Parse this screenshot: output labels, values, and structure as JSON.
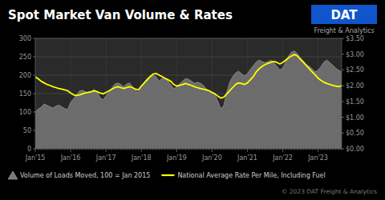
{
  "chart_data": {
    "type": "line",
    "title": "Spot Market Van Volume & Rates",
    "annotations": [
      "DAT",
      "Freight & Analytics",
      "© 2023 DAT Freight & Analytics"
    ],
    "categories": [
      "Jan'15",
      null,
      null,
      null,
      null,
      null,
      null,
      null,
      null,
      null,
      null,
      null,
      "Jan'16",
      null,
      null,
      null,
      null,
      null,
      null,
      null,
      null,
      null,
      null,
      null,
      "Jan'17",
      null,
      null,
      null,
      null,
      null,
      null,
      null,
      null,
      null,
      null,
      null,
      "Jan'18",
      null,
      null,
      null,
      null,
      null,
      null,
      null,
      null,
      null,
      null,
      null,
      "Jan'19",
      null,
      null,
      null,
      null,
      null,
      null,
      null,
      null,
      null,
      null,
      null,
      "Jan'20",
      null,
      null,
      null,
      null,
      null,
      null,
      null,
      null,
      null,
      null,
      null,
      "Jan'21",
      null,
      null,
      null,
      null,
      null,
      null,
      null,
      null,
      null,
      null,
      null,
      "Jan'22",
      null,
      null,
      null,
      null,
      null,
      null,
      null,
      null,
      null,
      null,
      null,
      "Jan'23",
      null,
      null,
      null,
      null,
      null,
      null,
      null,
      null
    ],
    "series": [
      {
        "name": "Volume of Loads Moved, 100 = Jan 2015",
        "type": "area",
        "color": "#787878",
        "values": [
          100,
          108,
          113,
          122,
          118,
          114,
          111,
          116,
          119,
          114,
          109,
          107,
          126,
          136,
          147,
          157,
          159,
          155,
          151,
          156,
          161,
          154,
          139,
          133,
          144,
          154,
          166,
          176,
          179,
          175,
          169,
          176,
          179,
          169,
          159,
          153,
          169,
          181,
          192,
          196,
          199,
          196,
          184,
          191,
          193,
          184,
          174,
          163,
          169,
          177,
          184,
          191,
          189,
          184,
          178,
          181,
          178,
          173,
          163,
          158,
          154,
          148,
          128,
          108,
          118,
          154,
          181,
          196,
          206,
          211,
          204,
          198,
          204,
          216,
          226,
          236,
          241,
          237,
          234,
          237,
          241,
          234,
          224,
          214,
          219,
          236,
          252,
          263,
          266,
          258,
          247,
          239,
          229,
          224,
          217,
          209,
          214,
          224,
          236,
          241,
          234,
          227,
          219,
          213,
          209
        ]
      },
      {
        "name": "National Average Rate Per Mile, Including Fuel",
        "type": "line",
        "color": "#ffff00",
        "axis": "y2",
        "values": [
          2.28,
          2.22,
          2.14,
          2.09,
          2.04,
          2.01,
          1.97,
          1.94,
          1.91,
          1.89,
          1.87,
          1.84,
          1.77,
          1.71,
          1.69,
          1.71,
          1.74,
          1.77,
          1.79,
          1.81,
          1.84,
          1.81,
          1.77,
          1.74,
          1.79,
          1.84,
          1.89,
          1.94,
          1.97,
          1.94,
          1.91,
          1.94,
          1.97,
          1.94,
          1.89,
          1.87,
          1.99,
          2.09,
          2.19,
          2.29,
          2.37,
          2.39,
          2.34,
          2.29,
          2.24,
          2.19,
          2.14,
          2.04,
          1.99,
          2.01,
          2.04,
          2.07,
          2.04,
          2.01,
          1.97,
          1.94,
          1.91,
          1.89,
          1.87,
          1.84,
          1.79,
          1.74,
          1.67,
          1.61,
          1.64,
          1.74,
          1.84,
          1.94,
          2.04,
          2.09,
          2.07,
          2.04,
          2.09,
          2.19,
          2.29,
          2.44,
          2.54,
          2.61,
          2.67,
          2.71,
          2.74,
          2.77,
          2.74,
          2.69,
          2.74,
          2.81,
          2.89,
          2.94,
          2.99,
          2.94,
          2.84,
          2.74,
          2.64,
          2.54,
          2.44,
          2.34,
          2.24,
          2.17,
          2.11,
          2.07,
          2.04,
          2.01,
          1.99,
          1.97,
          2.0
        ]
      }
    ],
    "ylim": [
      0,
      300
    ],
    "yticks": [
      0,
      50,
      100,
      150,
      200,
      250,
      300
    ],
    "y2lim": [
      0.0,
      3.5
    ],
    "y2ticks": [
      {
        "value": 0.0,
        "label": "$0.00"
      },
      {
        "value": 0.5,
        "label": "$0.50"
      },
      {
        "value": 1.0,
        "label": "$1.00"
      },
      {
        "value": 1.5,
        "label": "$1.50"
      },
      {
        "value": 2.0,
        "label": "$2.00"
      },
      {
        "value": 2.5,
        "label": "$2.50"
      },
      {
        "value": 3.0,
        "label": "$3.00"
      },
      {
        "value": 3.5,
        "label": "$3.50"
      }
    ],
    "grid": true,
    "legend": "bottom"
  }
}
